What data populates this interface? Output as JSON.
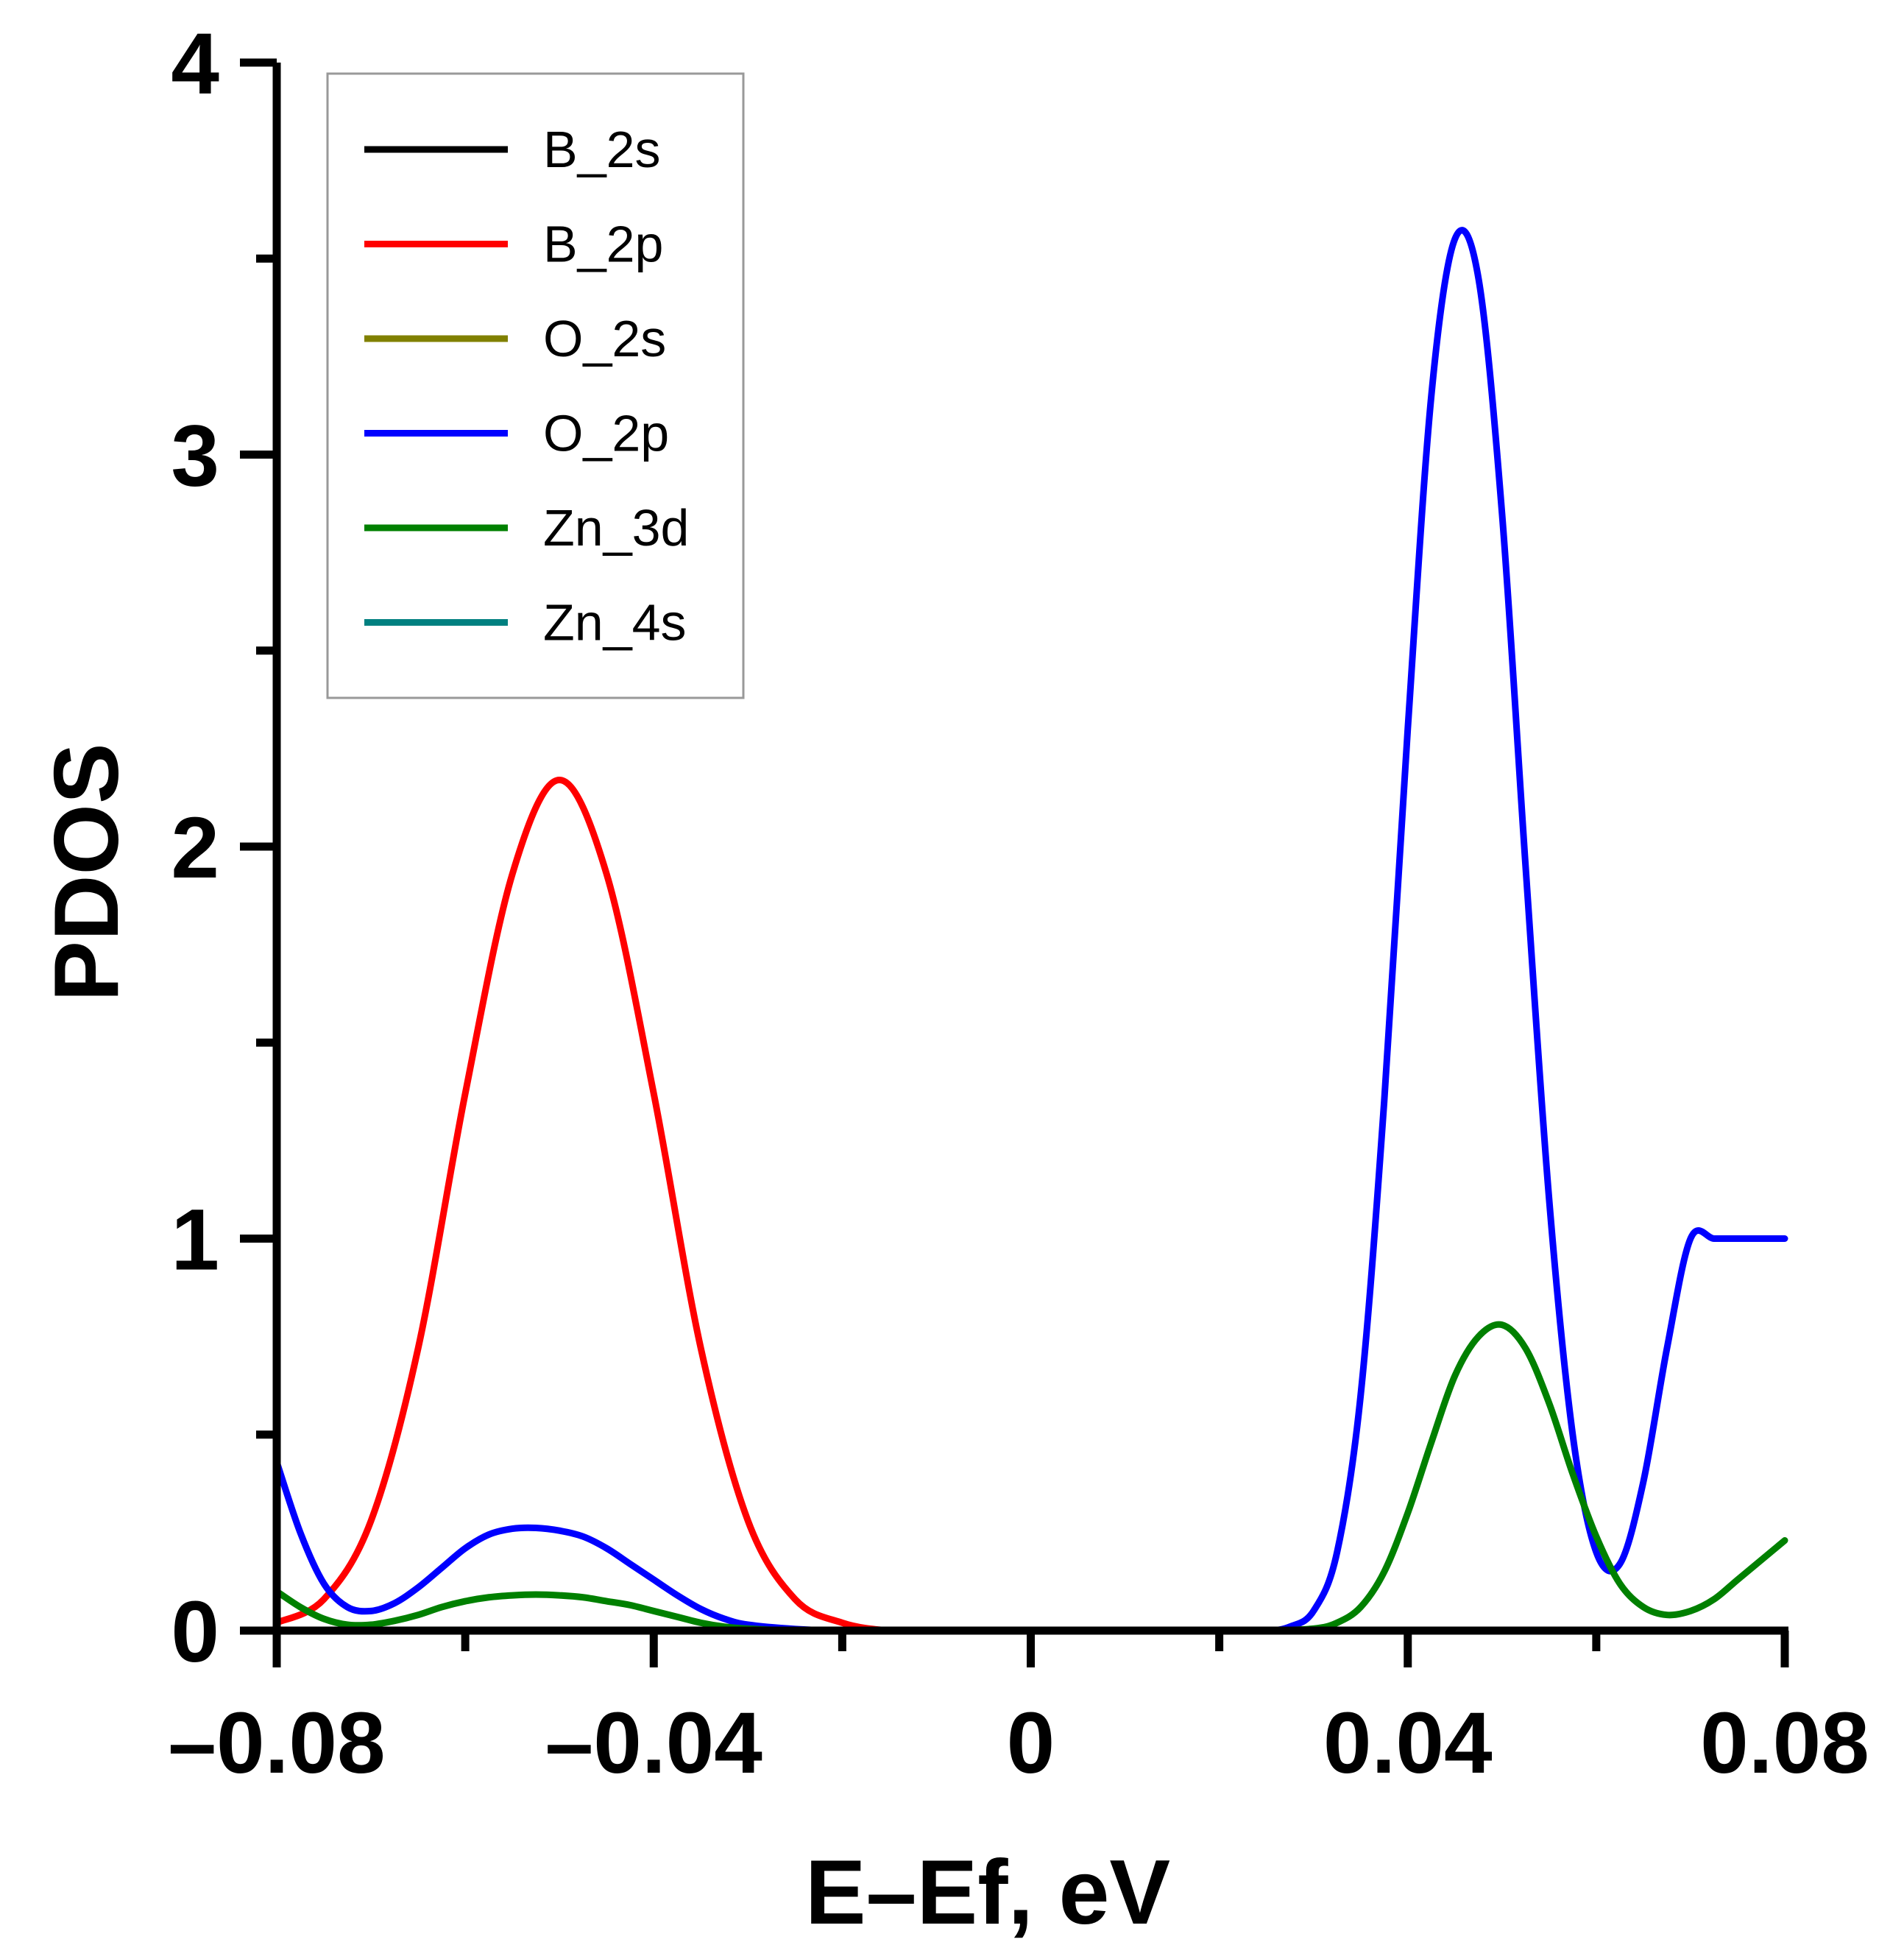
{
  "chart_data": {
    "type": "line",
    "title": "",
    "xlabel": "E–Ef, eV",
    "ylabel": "PDOS",
    "xlim": [
      -0.08,
      0.08
    ],
    "ylim": [
      0,
      4
    ],
    "xticks": [
      -0.08,
      -0.04,
      0,
      0.04,
      0.08
    ],
    "xtick_labels": [
      "–0.08",
      "–0.04",
      "0",
      "0.04",
      "0.08"
    ],
    "x_minor_ticks": [
      -0.06,
      -0.02,
      0.02,
      0.06
    ],
    "yticks": [
      0,
      1,
      2,
      3,
      4
    ],
    "ytick_labels": [
      "0",
      "1",
      "2",
      "3",
      "4"
    ],
    "y_minor_ticks": [
      0.5,
      1.5,
      2.5,
      3.5
    ],
    "grid": false,
    "legend_position": "top-left",
    "series": [
      {
        "name": "B_2s",
        "color": "#000000",
        "x": [
          -0.08,
          0.08
        ],
        "y": [
          0,
          0
        ]
      },
      {
        "name": "B_2p",
        "color": "#ff0000",
        "x": [
          -0.08,
          -0.075,
          -0.07,
          -0.065,
          -0.06,
          -0.055,
          -0.05,
          -0.045,
          -0.04,
          -0.035,
          -0.03,
          -0.025,
          -0.02,
          -0.015,
          -0.01,
          0,
          0.01,
          0.02,
          0.03,
          0.04,
          0.05,
          0.06,
          0.07,
          0.08
        ],
        "y": [
          0.02,
          0.08,
          0.28,
          0.72,
          1.37,
          1.93,
          2.17,
          1.93,
          1.37,
          0.72,
          0.28,
          0.08,
          0.02,
          0.0,
          0.0,
          0.0,
          0.0,
          0.0,
          0.0,
          0.0,
          0.0,
          0.0,
          0.0,
          0.0
        ]
      },
      {
        "name": "O_2s",
        "color": "#808000",
        "x": [
          -0.08,
          0.08
        ],
        "y": [
          0,
          0
        ]
      },
      {
        "name": "O_2p",
        "color": "#0000ff",
        "x": [
          -0.08,
          -0.0775,
          -0.075,
          -0.0725,
          -0.07,
          -0.0675,
          -0.065,
          -0.0625,
          -0.06,
          -0.0575,
          -0.055,
          -0.0525,
          -0.05,
          -0.0475,
          -0.045,
          -0.0425,
          -0.04,
          -0.0375,
          -0.035,
          -0.0325,
          -0.03,
          -0.025,
          -0.02,
          -0.01,
          0,
          0.01,
          0.02,
          0.025,
          0.0275,
          0.03,
          0.0325,
          0.035,
          0.0375,
          0.04,
          0.0425,
          0.045,
          0.0475,
          0.05,
          0.0525,
          0.055,
          0.0575,
          0.06,
          0.0625,
          0.065,
          0.0675,
          0.07,
          0.0725,
          0.075,
          0.0775,
          0.08
        ],
        "y": [
          0.43,
          0.25,
          0.12,
          0.06,
          0.05,
          0.07,
          0.11,
          0.16,
          0.21,
          0.245,
          0.26,
          0.262,
          0.255,
          0.24,
          0.21,
          0.17,
          0.13,
          0.09,
          0.055,
          0.03,
          0.015,
          0.004,
          0.0,
          0.0,
          0.0,
          0.0,
          0.0,
          0.0,
          0.01,
          0.05,
          0.2,
          0.6,
          1.35,
          2.3,
          3.15,
          3.55,
          3.45,
          2.85,
          1.95,
          1.1,
          0.5,
          0.2,
          0.17,
          0.38,
          0.72,
          1.0,
          1.0,
          1.0,
          1.0,
          1.0
        ]
      },
      {
        "name": "Zn_3d",
        "color": "#008000",
        "x": [
          -0.08,
          -0.0775,
          -0.075,
          -0.0725,
          -0.07,
          -0.0675,
          -0.065,
          -0.0625,
          -0.06,
          -0.0575,
          -0.055,
          -0.0525,
          -0.05,
          -0.0475,
          -0.045,
          -0.0425,
          -0.04,
          -0.0375,
          -0.035,
          -0.0325,
          -0.03,
          -0.025,
          -0.02,
          0,
          0.02,
          0.025,
          0.03,
          0.0325,
          0.035,
          0.0375,
          0.04,
          0.0425,
          0.045,
          0.0475,
          0.05,
          0.0525,
          0.055,
          0.0575,
          0.06,
          0.0625,
          0.065,
          0.0675,
          0.07,
          0.0725,
          0.075,
          0.0775,
          0.08
        ],
        "y": [
          0.1,
          0.06,
          0.03,
          0.015,
          0.015,
          0.025,
          0.04,
          0.06,
          0.075,
          0.085,
          0.09,
          0.092,
          0.09,
          0.085,
          0.075,
          0.065,
          0.05,
          0.035,
          0.02,
          0.01,
          0.005,
          0.0,
          0.0,
          0.0,
          0.0,
          0.0,
          0.005,
          0.02,
          0.06,
          0.15,
          0.3,
          0.48,
          0.65,
          0.75,
          0.78,
          0.72,
          0.58,
          0.4,
          0.24,
          0.12,
          0.06,
          0.04,
          0.05,
          0.08,
          0.13,
          0.18,
          0.23
        ]
      },
      {
        "name": "Zn_4s",
        "color": "#008080",
        "x": [
          -0.08,
          0.08
        ],
        "y": [
          0,
          0
        ]
      }
    ]
  }
}
